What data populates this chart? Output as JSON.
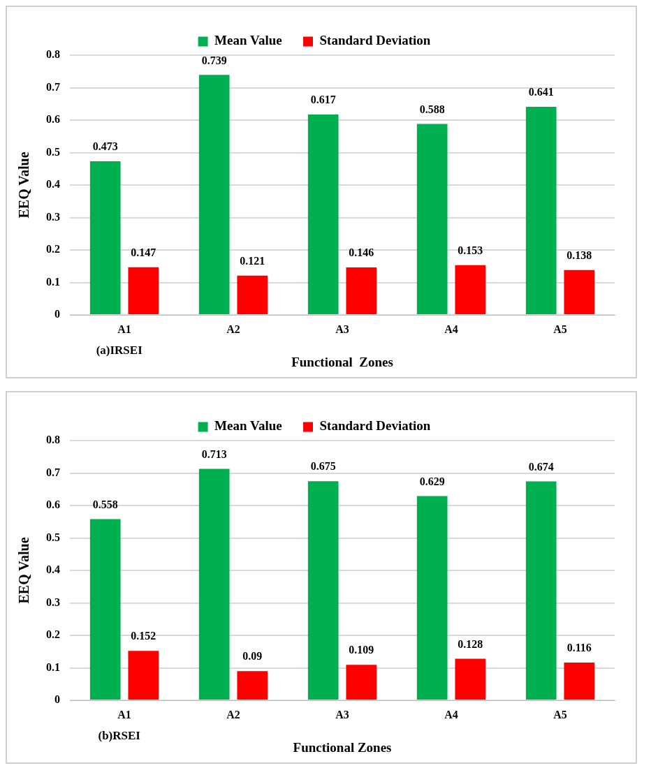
{
  "chart_data": [
    {
      "type": "bar",
      "xlabel": "Functional  Zones",
      "ylabel": "EEQ Value",
      "annotations": [
        "(a)IRSEI"
      ],
      "categories": [
        "A1",
        "A2",
        "A3",
        "A4",
        "A5"
      ],
      "series": [
        {
          "name": "Mean Value",
          "color": "#00b050",
          "values": [
            0.473,
            0.739,
            0.617,
            0.588,
            0.641
          ]
        },
        {
          "name": "Standard Deviation",
          "color": "#ff0000",
          "values": [
            0.147,
            0.121,
            0.146,
            0.153,
            0.138
          ]
        }
      ],
      "ylim": [
        0,
        0.8
      ],
      "yticks": [
        0,
        0.1,
        0.2,
        0.3,
        0.4,
        0.5,
        0.6,
        0.7,
        0.8
      ],
      "grid": "y",
      "legend": "top",
      "data_labels": true
    },
    {
      "type": "bar",
      "xlabel": "Functional Zones",
      "ylabel": "EEQ Value",
      "annotations": [
        "(b)RSEI"
      ],
      "categories": [
        "A1",
        "A2",
        "A3",
        "A4",
        "A5"
      ],
      "series": [
        {
          "name": "Mean Value",
          "color": "#00b050",
          "values": [
            0.558,
            0.713,
            0.675,
            0.629,
            0.674
          ]
        },
        {
          "name": "Standard Deviation",
          "color": "#ff0000",
          "values": [
            0.152,
            0.09,
            0.109,
            0.128,
            0.116
          ]
        }
      ],
      "ylim": [
        0,
        0.8
      ],
      "yticks": [
        0,
        0.1,
        0.2,
        0.3,
        0.4,
        0.5,
        0.6,
        0.7,
        0.8
      ],
      "grid": "y",
      "legend": "top",
      "data_labels": true
    }
  ]
}
